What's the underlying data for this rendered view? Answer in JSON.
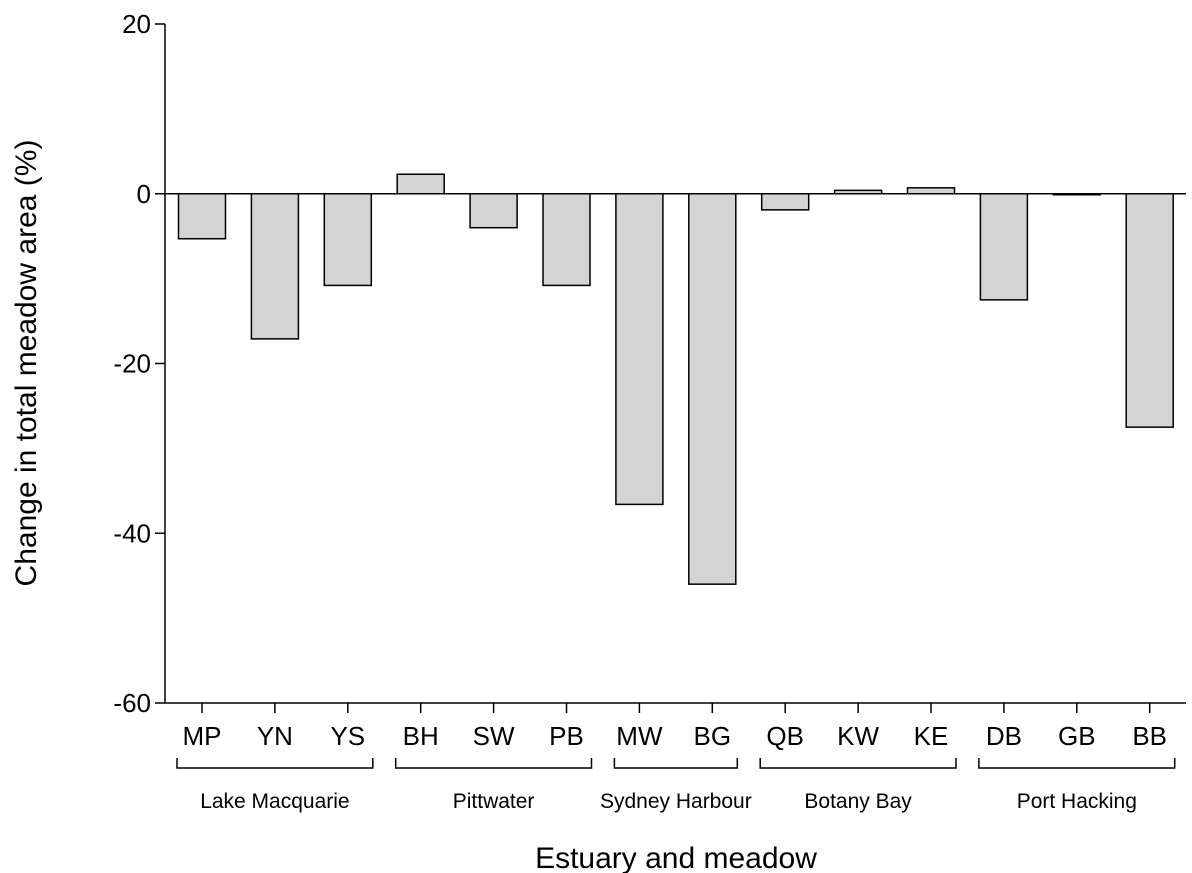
{
  "chart_data": {
    "type": "bar",
    "title": "",
    "xlabel": "Estuary and meadow",
    "ylabel": "Change in total meadow area (%)",
    "ylim": [
      -60,
      20
    ],
    "yticks": [
      20,
      0,
      -20,
      -40,
      -60
    ],
    "yticks_text": [
      "20",
      "0",
      "-20",
      "-40",
      "-60"
    ],
    "grid": false,
    "legend": "none",
    "bar_color": "#d4d4d4",
    "edge_color": "#000000",
    "categories": [
      "MP",
      "YN",
      "YS",
      "BH",
      "SW",
      "PB",
      "MW",
      "BG",
      "QB",
      "KW",
      "KE",
      "DB",
      "GB",
      "BB"
    ],
    "values": [
      -5.3,
      -17.1,
      -10.8,
      2.3,
      -4.0,
      -10.8,
      -36.6,
      -46.0,
      -1.9,
      0.4,
      0.7,
      -12.5,
      -0.1,
      -27.5
    ],
    "groups": [
      {
        "label": "Lake Macquarie",
        "members": [
          "MP",
          "YN",
          "YS"
        ]
      },
      {
        "label": "Pittwater",
        "members": [
          "BH",
          "SW",
          "PB"
        ]
      },
      {
        "label": "Sydney Harbour",
        "members": [
          "MW",
          "BG"
        ]
      },
      {
        "label": "Botany Bay",
        "members": [
          "QB",
          "KW",
          "KE"
        ]
      },
      {
        "label": "Port Hacking",
        "members": [
          "DB",
          "GB",
          "BB"
        ]
      }
    ]
  }
}
